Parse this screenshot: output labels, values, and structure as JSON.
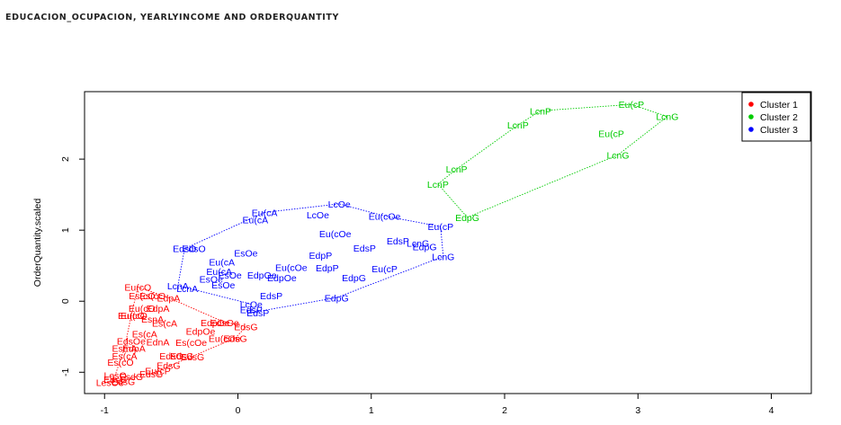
{
  "page": {
    "title": "EDUCACION_OCUPACION, YEARLYINCOME AND ORDERQUANTITY"
  },
  "chart_data": {
    "type": "scatter",
    "title": "",
    "xlabel": "",
    "ylabel": "OrderQuantity.scaled",
    "xlim": [
      -1.15,
      4.3
    ],
    "ylim": [
      -1.3,
      2.95
    ],
    "x_ticks": [
      -1,
      0,
      1,
      2,
      3,
      4
    ],
    "y_ticks": [
      -1,
      0,
      1,
      2
    ],
    "legend": {
      "position": "top-right",
      "entries": [
        "Cluster  1",
        "Cluster  2",
        "Cluster  3"
      ]
    },
    "colors": {
      "Cluster 1": "#ff0000",
      "Cluster 2": "#00cc00",
      "Cluster 3": "#0000ff"
    },
    "series": [
      {
        "name": "Cluster  1",
        "points": [
          {
            "x": -0.75,
            "y": 0.2,
            "label": "Eu(cO"
          },
          {
            "x": -0.72,
            "y": 0.08,
            "label": "Es(cO"
          },
          {
            "x": -0.64,
            "y": 0.08,
            "label": "Es(cO"
          },
          {
            "x": -0.52,
            "y": 0.05,
            "label": "EdpA"
          },
          {
            "x": -0.72,
            "y": -0.1,
            "label": "Eu(cO"
          },
          {
            "x": -0.6,
            "y": -0.1,
            "label": "EdpA"
          },
          {
            "x": -0.8,
            "y": -0.2,
            "label": "Eu(cO"
          },
          {
            "x": -0.78,
            "y": -0.2,
            "label": "Eu(cO"
          },
          {
            "x": -0.64,
            "y": -0.25,
            "label": "EsnA"
          },
          {
            "x": -0.55,
            "y": -0.31,
            "label": "Es(cA"
          },
          {
            "x": -0.17,
            "y": -0.3,
            "label": "EdpOe"
          },
          {
            "x": -0.1,
            "y": -0.3,
            "label": "EdsOe"
          },
          {
            "x": 0.06,
            "y": -0.36,
            "label": "EdsG"
          },
          {
            "x": -0.28,
            "y": -0.42,
            "label": "EdpOe"
          },
          {
            "x": -0.7,
            "y": -0.46,
            "label": "Es(cA"
          },
          {
            "x": -0.8,
            "y": -0.56,
            "label": "EdsOe"
          },
          {
            "x": -0.6,
            "y": -0.57,
            "label": "EdnA"
          },
          {
            "x": -0.35,
            "y": -0.58,
            "label": "Es(cOe"
          },
          {
            "x": -0.1,
            "y": -0.52,
            "label": "Eu(cOe"
          },
          {
            "x": -0.02,
            "y": -0.52,
            "label": "EdsG"
          },
          {
            "x": -0.85,
            "y": -0.66,
            "label": "EsmA"
          },
          {
            "x": -0.78,
            "y": -0.66,
            "label": "EdpA"
          },
          {
            "x": -0.85,
            "y": -0.77,
            "label": "Es(cA"
          },
          {
            "x": -0.5,
            "y": -0.77,
            "label": "EdsG"
          },
          {
            "x": -0.42,
            "y": -0.77,
            "label": "EdsG"
          },
          {
            "x": -0.34,
            "y": -0.78,
            "label": "EdsG"
          },
          {
            "x": -0.88,
            "y": -0.86,
            "label": "Es(cO"
          },
          {
            "x": -0.52,
            "y": -0.9,
            "label": "EdsG"
          },
          {
            "x": -0.6,
            "y": -0.98,
            "label": "Eu(cP"
          },
          {
            "x": -0.65,
            "y": -1.02,
            "label": "EdsG"
          },
          {
            "x": -0.92,
            "y": -1.04,
            "label": "LesO"
          },
          {
            "x": -0.8,
            "y": -1.06,
            "label": "EsdG"
          },
          {
            "x": -0.92,
            "y": -1.1,
            "label": "EdsG"
          },
          {
            "x": -0.96,
            "y": -1.14,
            "label": "LesOe"
          },
          {
            "x": -0.86,
            "y": -1.13,
            "label": "EdsG"
          }
        ]
      },
      {
        "name": "Cluster  2",
        "points": [
          {
            "x": 2.95,
            "y": 2.77,
            "label": "Eu(cP"
          },
          {
            "x": 2.27,
            "y": 2.68,
            "label": "LcnP"
          },
          {
            "x": 3.22,
            "y": 2.6,
            "label": "LcnG"
          },
          {
            "x": 2.1,
            "y": 2.48,
            "label": "LcnP"
          },
          {
            "x": 2.8,
            "y": 2.36,
            "label": "Eu(cP"
          },
          {
            "x": 1.64,
            "y": 1.86,
            "label": "LcnP"
          },
          {
            "x": 2.85,
            "y": 2.06,
            "label": "LcnG"
          },
          {
            "x": 1.5,
            "y": 1.65,
            "label": "LcnP"
          },
          {
            "x": 1.72,
            "y": 1.18,
            "label": "EdpG"
          }
        ]
      },
      {
        "name": "Cluster  3",
        "points": [
          {
            "x": 0.2,
            "y": 1.25,
            "label": "Eu(cA"
          },
          {
            "x": 0.13,
            "y": 1.15,
            "label": "Eu(cA"
          },
          {
            "x": 0.76,
            "y": 1.37,
            "label": "LcOe"
          },
          {
            "x": 0.6,
            "y": 1.22,
            "label": "LcOe"
          },
          {
            "x": 1.1,
            "y": 1.2,
            "label": "Eu(cOe"
          },
          {
            "x": 1.52,
            "y": 1.05,
            "label": "Eu(cP"
          },
          {
            "x": 0.73,
            "y": 0.95,
            "label": "Eu(cOe"
          },
          {
            "x": 1.2,
            "y": 0.85,
            "label": "EdsP"
          },
          {
            "x": 1.35,
            "y": 0.82,
            "label": "LcnG"
          },
          {
            "x": 1.4,
            "y": 0.77,
            "label": "EdpG"
          },
          {
            "x": 0.95,
            "y": 0.75,
            "label": "EdsP"
          },
          {
            "x": -0.4,
            "y": 0.74,
            "label": "EdsO"
          },
          {
            "x": -0.33,
            "y": 0.74,
            "label": "EdsO"
          },
          {
            "x": 0.06,
            "y": 0.68,
            "label": "EsOe"
          },
          {
            "x": 0.62,
            "y": 0.65,
            "label": "EdpP"
          },
          {
            "x": 1.54,
            "y": 0.63,
            "label": "LcnG"
          },
          {
            "x": -0.12,
            "y": 0.55,
            "label": "Eu(cA"
          },
          {
            "x": 0.4,
            "y": 0.48,
            "label": "Eu(cOe"
          },
          {
            "x": 0.67,
            "y": 0.47,
            "label": "EdpP"
          },
          {
            "x": 1.1,
            "y": 0.46,
            "label": "Eu(cP"
          },
          {
            "x": -0.14,
            "y": 0.42,
            "label": "Eu(cA"
          },
          {
            "x": -0.06,
            "y": 0.37,
            "label": "EsOe"
          },
          {
            "x": 0.18,
            "y": 0.37,
            "label": "EdpOe"
          },
          {
            "x": 0.33,
            "y": 0.33,
            "label": "EdpOe"
          },
          {
            "x": 0.87,
            "y": 0.33,
            "label": "EdpG"
          },
          {
            "x": -0.2,
            "y": 0.31,
            "label": "EsOe"
          },
          {
            "x": -0.11,
            "y": 0.23,
            "label": "EsOe"
          },
          {
            "x": -0.45,
            "y": 0.22,
            "label": "LcnA"
          },
          {
            "x": -0.38,
            "y": 0.18,
            "label": "LcnA"
          },
          {
            "x": 0.25,
            "y": 0.08,
            "label": "EdsP"
          },
          {
            "x": 0.74,
            "y": 0.05,
            "label": "EdpG"
          },
          {
            "x": 0.1,
            "y": -0.04,
            "label": "LcOe"
          },
          {
            "x": 0.1,
            "y": -0.12,
            "label": "EdsP"
          },
          {
            "x": 0.15,
            "y": -0.16,
            "label": "EdsP"
          }
        ]
      }
    ],
    "hulls": [
      {
        "series": "Cluster  1",
        "vertices": [
          [
            -0.75,
            0.2
          ],
          [
            -0.52,
            0.05
          ],
          [
            -0.12,
            -0.28
          ],
          [
            0.06,
            -0.36
          ],
          [
            -0.02,
            -0.52
          ],
          [
            -0.65,
            -1.02
          ],
          [
            -0.96,
            -1.14
          ],
          [
            -0.92,
            -1.04
          ],
          [
            -0.85,
            -0.66
          ],
          [
            -0.8,
            -0.2
          ]
        ]
      },
      {
        "series": "Cluster  2",
        "vertices": [
          [
            2.27,
            2.68
          ],
          [
            2.95,
            2.77
          ],
          [
            3.22,
            2.6
          ],
          [
            2.85,
            2.06
          ],
          [
            1.72,
            1.18
          ],
          [
            1.5,
            1.65
          ],
          [
            1.64,
            1.86
          ],
          [
            2.1,
            2.48
          ]
        ]
      },
      {
        "series": "Cluster  3",
        "vertices": [
          [
            0.2,
            1.25
          ],
          [
            0.76,
            1.37
          ],
          [
            1.1,
            1.2
          ],
          [
            1.52,
            1.05
          ],
          [
            1.54,
            0.63
          ],
          [
            0.74,
            0.05
          ],
          [
            0.1,
            -0.16
          ],
          [
            0.1,
            -0.04
          ],
          [
            -0.45,
            0.22
          ],
          [
            -0.4,
            0.74
          ]
        ]
      }
    ]
  }
}
